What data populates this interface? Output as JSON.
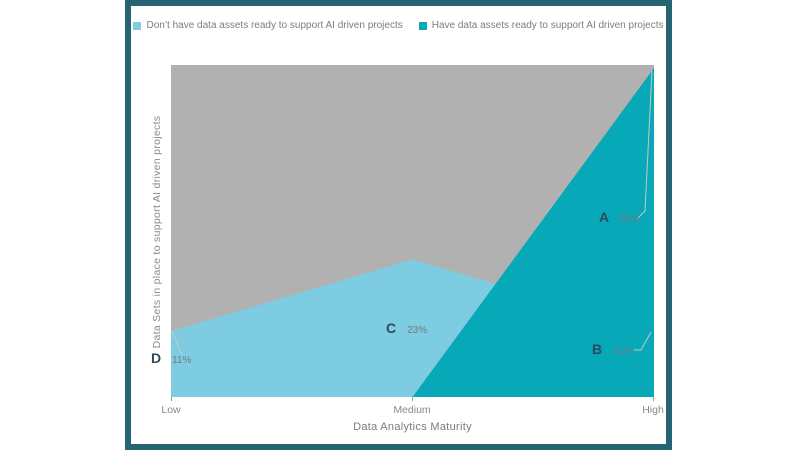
{
  "card": {
    "border_color": "#266474",
    "background": "#ffffff"
  },
  "legend": {
    "position": "top",
    "items": [
      {
        "label": "Don’t have data assets ready to support AI driven projects",
        "color": "#7DCCE2"
      },
      {
        "label": "Have data assets ready to support AI driven projects",
        "color": "#07A9B8"
      }
    ]
  },
  "chart_data": {
    "type": "area",
    "title": "",
    "categories": [
      "Low",
      "Medium",
      "High"
    ],
    "series": [
      {
        "name": "Don’t have data assets ready to support AI driven projects",
        "color": "#7DCCE2",
        "values": [
          11,
          23,
          11
        ]
      },
      {
        "name": "Have data assets ready to support AI driven projects",
        "color": "#07A9B8",
        "values": [
          0,
          0,
          55
        ]
      }
    ],
    "unit": "%",
    "xlabel": "Data Analytics Maturity",
    "ylabel": "Data Sets in place to support AI driven projects",
    "ylim": [
      0,
      55.5
    ],
    "grid": false,
    "legend_position": "top",
    "plot_background": "#B2B1B2",
    "point_labels": [
      {
        "letter": "A",
        "value": 55,
        "text": "55%",
        "series": "Have data assets ready to support AI driven projects",
        "category": "High"
      },
      {
        "letter": "B",
        "value": 11,
        "text": "11%",
        "series": "Don’t have data assets ready to support AI driven projects",
        "category": "High"
      },
      {
        "letter": "C",
        "value": 23,
        "text": "23%",
        "series": "Don’t have data assets ready to support AI driven projects",
        "category": "Medium"
      },
      {
        "letter": "D",
        "value": 11,
        "text": "11%",
        "series": "Don’t have data assets ready to support AI driven projects",
        "category": "Low"
      }
    ]
  }
}
